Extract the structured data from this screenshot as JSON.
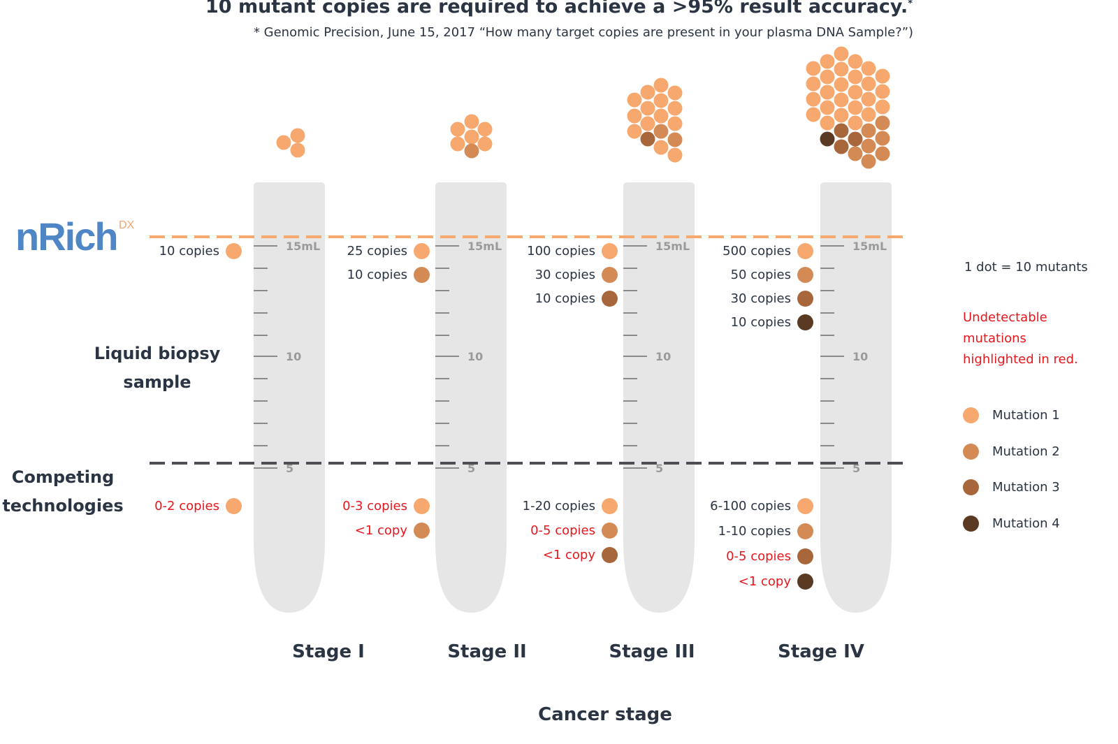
{
  "title": "10 mutant copies are required to achieve a >95% result accuracy.",
  "title_mark": "*",
  "subtitle": "* Genomic Precision, June 15, 2017 “How many target copies are present in your plasma DNA Sample?”)",
  "logo": {
    "text": "nRich",
    "suffix": "DX"
  },
  "row_labels": {
    "liquid_biopsy": [
      "Liquid biopsy",
      "sample"
    ],
    "competing": [
      "Competing",
      "technologies"
    ]
  },
  "tube_ticks": {
    "top": "15mL",
    "mid": "10",
    "low": "5"
  },
  "colors": {
    "mutation_1": "#f6a86e",
    "mutation_2": "#d38a55",
    "mutation_3": "#a7673b",
    "mutation_4": "#5a3a22",
    "undetectable": "#e8171d",
    "nrich_line": "#f6a86e",
    "competing_line": "#4d4f55",
    "tube": "#e6e6e6"
  },
  "stages": [
    {
      "label": "Stage I",
      "nrich": [
        {
          "text": "10 copies",
          "mutation": 1,
          "detectable": true
        }
      ],
      "competing": [
        {
          "text": "0-2 copies",
          "mutation": 1,
          "detectable": false
        }
      ],
      "cluster": [
        1,
        1,
        1
      ]
    },
    {
      "label": "Stage II",
      "nrich": [
        {
          "text": "25 copies",
          "mutation": 1,
          "detectable": true
        },
        {
          "text": "10 copies",
          "mutation": 2,
          "detectable": true
        }
      ],
      "competing": [
        {
          "text": "0-3 copies",
          "mutation": 1,
          "detectable": false
        },
        {
          "text": "<1 copy",
          "mutation": 2,
          "detectable": false
        }
      ],
      "cluster": [
        1,
        1,
        1,
        1,
        1,
        1,
        2
      ]
    },
    {
      "label": "Stage III",
      "nrich": [
        {
          "text": "100 copies",
          "mutation": 1,
          "detectable": true
        },
        {
          "text": "30 copies",
          "mutation": 2,
          "detectable": true
        },
        {
          "text": "10 copies",
          "mutation": 3,
          "detectable": true
        }
      ],
      "competing": [
        {
          "text": "1-20 copies",
          "mutation": 1,
          "detectable": true
        },
        {
          "text": "0-5 copies",
          "mutation": 2,
          "detectable": false
        },
        {
          "text": "<1 copy",
          "mutation": 3,
          "detectable": false
        }
      ],
      "cluster": [
        1,
        1,
        1,
        1,
        1,
        1,
        1,
        1,
        1,
        1,
        1,
        1,
        1,
        1,
        2,
        2,
        3
      ]
    },
    {
      "label": "Stage IV",
      "nrich": [
        {
          "text": "500 copies",
          "mutation": 1,
          "detectable": true
        },
        {
          "text": "50 copies",
          "mutation": 2,
          "detectable": true
        },
        {
          "text": "30 copies",
          "mutation": 3,
          "detectable": true
        },
        {
          "text": "10 copies",
          "mutation": 4,
          "detectable": true
        }
      ],
      "competing": [
        {
          "text": "6-100 copies",
          "mutation": 1,
          "detectable": true
        },
        {
          "text": "1-10 copies",
          "mutation": 2,
          "detectable": true
        },
        {
          "text": "0-5 copies",
          "mutation": 3,
          "detectable": false
        },
        {
          "text": "<1 copy",
          "mutation": 4,
          "detectable": false
        }
      ],
      "cluster": [
        1,
        2,
        3,
        4
      ]
    }
  ],
  "x_axis_label": "Cancer stage",
  "legend": {
    "note": "1 dot = 10 mutants",
    "undetectable_note": [
      "Undetectable",
      "mutations",
      "highlighted in red."
    ],
    "items": [
      {
        "label": "Mutation 1",
        "mutation": 1
      },
      {
        "label": "Mutation 2",
        "mutation": 2
      },
      {
        "label": "Mutation 3",
        "mutation": 3
      },
      {
        "label": "Mutation 4",
        "mutation": 4
      }
    ]
  }
}
